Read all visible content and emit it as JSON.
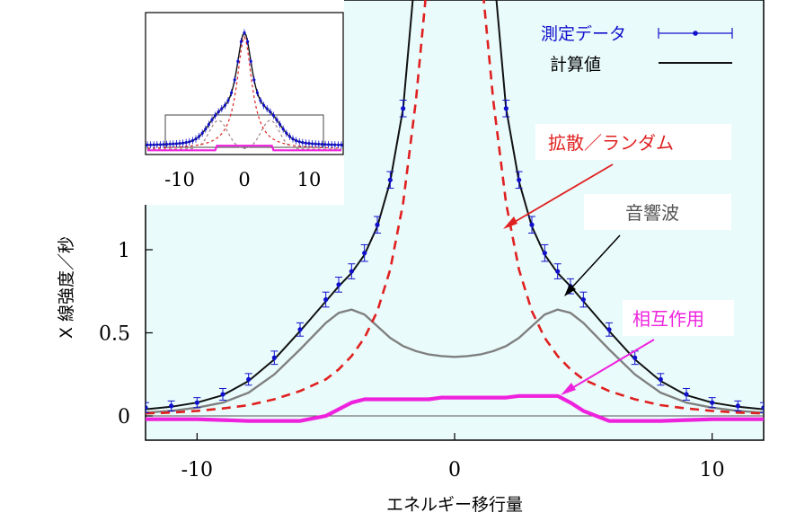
{
  "chart_data": {
    "type": "line",
    "title": "",
    "xlabel": "エネルギー移行量",
    "ylabel": "X 線強度／秒",
    "xlim": [
      -12,
      12
    ],
    "ylim": [
      -0.12,
      1.95
    ],
    "xticks": [
      "-10",
      "0",
      "10"
    ],
    "yticks": [
      "0",
      "0.5",
      "1"
    ],
    "x": [
      -12,
      -11,
      -10,
      -9,
      -8,
      -7,
      -6,
      -5,
      -4.5,
      -4,
      -3.5,
      -3,
      -2.5,
      -2,
      -1.5,
      -1,
      -0.5,
      0,
      0.5,
      1,
      1.5,
      2,
      2.5,
      3,
      3.5,
      4,
      4.5,
      5,
      6,
      7,
      8,
      9,
      10,
      11,
      12
    ],
    "series": [
      {
        "name": "測定データ",
        "color": "#1010cc",
        "style": "points-errorbars",
        "values": [
          0.05,
          0.06,
          0.08,
          0.13,
          0.22,
          0.35,
          0.52,
          0.7,
          0.79,
          0.87,
          0.98,
          1.15,
          1.42,
          1.85,
          null,
          null,
          null,
          null,
          null,
          null,
          null,
          1.85,
          1.42,
          1.15,
          0.98,
          0.87,
          0.78,
          0.7,
          0.52,
          0.35,
          0.22,
          0.13,
          0.08,
          0.06,
          0.05
        ],
        "errors": [
          0.03,
          0.03,
          0.03,
          0.035,
          0.035,
          0.04,
          0.04,
          0.045,
          0.045,
          0.045,
          0.05,
          0.05,
          0.05,
          0.05,
          null,
          null,
          null,
          null,
          null,
          null,
          null,
          0.05,
          0.05,
          0.05,
          0.05,
          0.045,
          0.045,
          0.045,
          0.04,
          0.04,
          0.035,
          0.035,
          0.03,
          0.03,
          0.03
        ]
      },
      {
        "name": "計算値",
        "color": "#111111",
        "style": "solid",
        "values": [
          0.04,
          0.055,
          0.08,
          0.125,
          0.21,
          0.34,
          0.51,
          0.69,
          0.78,
          0.86,
          0.97,
          1.14,
          1.41,
          1.85,
          null,
          null,
          null,
          null,
          null,
          null,
          null,
          1.85,
          1.41,
          1.14,
          0.97,
          0.86,
          0.78,
          0.69,
          0.51,
          0.34,
          0.21,
          0.125,
          0.08,
          0.055,
          0.04
        ]
      },
      {
        "name": "拡散／ランダム",
        "color": "#e02020",
        "style": "dashed",
        "values": [
          0.015,
          0.02,
          0.03,
          0.045,
          0.065,
          0.1,
          0.15,
          0.22,
          0.28,
          0.36,
          0.47,
          0.63,
          0.88,
          1.28,
          1.9,
          null,
          null,
          null,
          null,
          null,
          1.9,
          1.28,
          0.88,
          0.63,
          0.47,
          0.36,
          0.28,
          0.22,
          0.15,
          0.1,
          0.065,
          0.045,
          0.03,
          0.02,
          0.015
        ]
      },
      {
        "name": "音響波",
        "color": "#808080",
        "style": "solid",
        "values": [
          0.02,
          0.03,
          0.05,
          0.08,
          0.14,
          0.25,
          0.4,
          0.56,
          0.62,
          0.64,
          0.61,
          0.54,
          0.47,
          0.42,
          0.39,
          0.37,
          0.36,
          0.355,
          0.36,
          0.37,
          0.39,
          0.42,
          0.47,
          0.54,
          0.61,
          0.64,
          0.62,
          0.56,
          0.4,
          0.25,
          0.14,
          0.08,
          0.05,
          0.03,
          0.02
        ]
      },
      {
        "name": "相互作用",
        "color": "#ee22dd",
        "style": "solid",
        "values": [
          -0.02,
          -0.02,
          -0.02,
          -0.025,
          -0.03,
          -0.03,
          -0.03,
          0.0,
          0.04,
          0.08,
          0.1,
          0.1,
          0.1,
          0.1,
          0.1,
          0.1,
          0.11,
          0.11,
          0.11,
          0.11,
          0.11,
          0.11,
          0.12,
          0.12,
          0.12,
          0.12,
          0.08,
          0.03,
          -0.03,
          -0.03,
          -0.03,
          -0.025,
          -0.02,
          -0.02,
          -0.02
        ]
      }
    ],
    "annotations": [
      "拡散／ランダム",
      "音響波",
      "相互作用"
    ],
    "legend": {
      "position": "top-right",
      "entries": [
        "測定データ",
        "計算値"
      ]
    },
    "inset": {
      "xticks": [
        "-10",
        "0",
        "10"
      ],
      "description_position": "top-left"
    },
    "background": "#eafbfb",
    "grid": false
  }
}
